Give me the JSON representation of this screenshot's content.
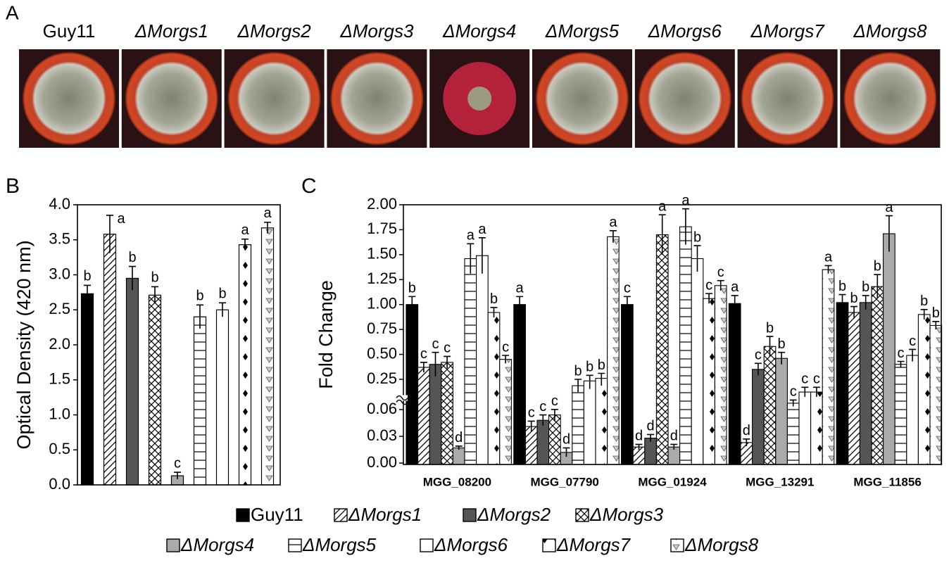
{
  "panel_a": {
    "label": "A",
    "strains": [
      "Guy11",
      "ΔMorgs1",
      "ΔMorgs2",
      "ΔMorgs3",
      "ΔMorgs4",
      "ΔMorgs5",
      "ΔMorgs6",
      "ΔMorgs7",
      "ΔMorgs8"
    ]
  },
  "chart_data": [
    {
      "type": "bar",
      "panel_label": "B",
      "y_label": "Optical Density (420 nm)",
      "categories": [
        null,
        null,
        null,
        null,
        null,
        null,
        null,
        null,
        null
      ],
      "values": [
        2.73,
        3.58,
        2.95,
        2.71,
        0.13,
        2.4,
        2.5,
        3.43,
        3.67
      ],
      "errors": [
        0.12,
        0.27,
        0.17,
        0.12,
        0.05,
        0.17,
        0.1,
        0.08,
        0.08
      ],
      "letters": [
        "b",
        "a",
        "b",
        "b",
        "c",
        "b",
        "b",
        "a",
        "a"
      ],
      "ylim": [
        0,
        4
      ],
      "yticks": [
        {
          "value": 0,
          "label": "0.0"
        },
        0.5,
        {
          "value": 1,
          "label": "1.0"
        },
        1.5,
        {
          "value": 2,
          "label": "2.0"
        },
        2.5,
        {
          "value": 3,
          "label": "3.0"
        },
        3.5,
        {
          "value": 4,
          "label": "4.0"
        }
      ]
    },
    {
      "type": "grouped_bar",
      "panel_label": "C",
      "y_label": "Fold Change",
      "categories": [
        "MGG_08200",
        "MGG_07790",
        "MGG_01924",
        "MGG_13291",
        "MGG_11856"
      ],
      "ylim": [
        0,
        2
      ],
      "ybreak": [
        0.06,
        0.25
      ],
      "yticks": [
        {
          "value": 0,
          "label": "0.00"
        },
        {
          "value": 0.03,
          "label": "0.03"
        },
        {
          "value": 0.06,
          "label": "0.06"
        },
        {
          "value": 0.25,
          "label": "0.25"
        },
        {
          "value": 0.5,
          "label": "0.50"
        },
        {
          "value": 0.75,
          "label": "0.75"
        },
        {
          "value": 1,
          "label": "1.00"
        },
        {
          "value": 1.25,
          "label": "1.25"
        },
        {
          "value": 1.5,
          "label": "1.50"
        },
        {
          "value": 1.75,
          "label": "1.75"
        },
        {
          "value": 2,
          "label": "2.00"
        }
      ],
      "series": [
        {
          "name": "Guy11",
          "color": "#000000",
          "pattern": "solid",
          "values": [
            1.0,
            1.0,
            1.0,
            1.01,
            1.02
          ],
          "errors": [
            0.08,
            0.08,
            0.08,
            0.08,
            0.08
          ],
          "letters": [
            "b",
            "a",
            "c",
            "a",
            "b"
          ]
        },
        {
          "name": "ΔMorgs1",
          "color": "#ffffff",
          "pattern": "diagonal",
          "values": [
            0.37,
            0.041,
            0.018,
            0.023,
            0.92
          ],
          "errors": [
            0.05,
            0.006,
            0.003,
            0.004,
            0.06
          ],
          "letters": [
            "c",
            "c",
            "d",
            "d",
            "b"
          ]
        },
        {
          "name": "ΔMorgs2",
          "color": "#555555",
          "pattern": "solid",
          "values": [
            0.4,
            0.048,
            0.028,
            0.35,
            1.02
          ],
          "errors": [
            0.12,
            0.006,
            0.004,
            0.06,
            0.07
          ],
          "letters": [
            "c",
            "c",
            "d",
            "c",
            "b"
          ]
        },
        {
          "name": "ΔMorgs3",
          "color": "#ffffff",
          "pattern": "cross",
          "values": [
            0.42,
            0.054,
            1.7,
            0.58,
            1.18
          ],
          "errors": [
            0.06,
            0.007,
            0.2,
            0.1,
            0.12
          ],
          "letters": [
            "c",
            "c",
            "a",
            "b",
            "b"
          ]
        },
        {
          "name": "ΔMorgs4",
          "color": "#aaaaaa",
          "pattern": "solid",
          "values": [
            0.017,
            0.012,
            0.018,
            0.46,
            1.71
          ],
          "errors": [
            0.002,
            0.005,
            0.003,
            0.06,
            0.18
          ],
          "letters": [
            "d",
            "d",
            "d",
            "b",
            "a"
          ]
        },
        {
          "name": "ΔMorgs5",
          "color": "#ffffff",
          "pattern": "horizontal",
          "values": [
            1.46,
            0.21,
            1.78,
            0.1,
            0.4
          ],
          "errors": [
            0.15,
            0.04,
            0.18,
            0.02,
            0.03
          ],
          "letters": [
            "a",
            "b",
            "a",
            "c",
            "c"
          ]
        },
        {
          "name": "ΔMorgs6",
          "color": "#ffffff",
          "pattern": "solid",
          "values": [
            1.49,
            0.24,
            1.46,
            0.17,
            0.49
          ],
          "errors": [
            0.18,
            0.05,
            0.13,
            0.03,
            0.06
          ],
          "letters": [
            "a",
            "b",
            "b",
            "c",
            "c"
          ]
        },
        {
          "name": "ΔMorgs7",
          "color": "#ffffff",
          "pattern": "diamond",
          "values": [
            0.92,
            0.26,
            1.06,
            0.17,
            0.9
          ],
          "errors": [
            0.05,
            0.05,
            0.05,
            0.03,
            0.05
          ],
          "letters": [
            "b",
            "b",
            "c",
            "c",
            "b"
          ]
        },
        {
          "name": "ΔMorgs8",
          "color": "#ffffff",
          "pattern": "triangle",
          "values": [
            0.45,
            1.68,
            1.19,
            1.35,
            0.79
          ],
          "errors": [
            0.04,
            0.06,
            0.05,
            0.04,
            0.04
          ],
          "letters": [
            "c",
            "a",
            "c",
            "a",
            "b"
          ]
        }
      ]
    }
  ]
}
